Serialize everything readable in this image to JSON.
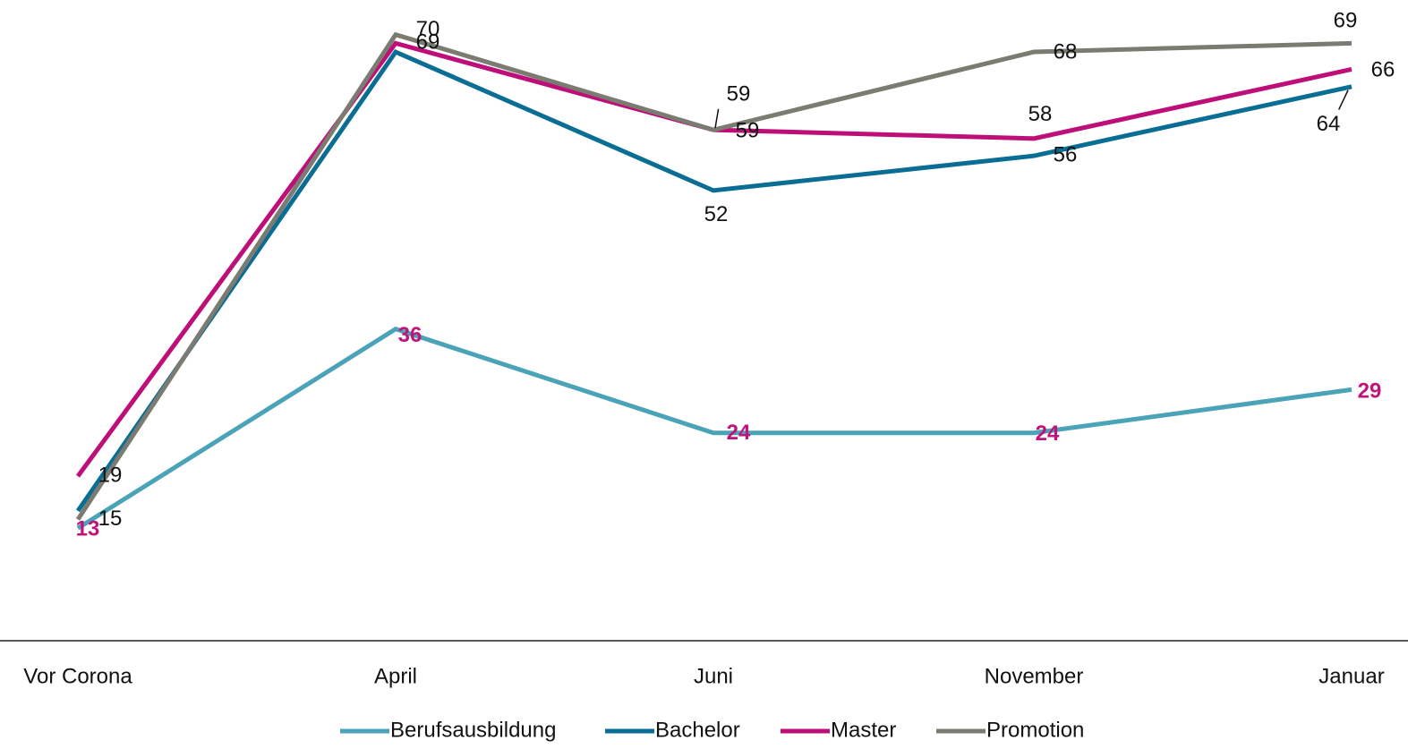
{
  "chart_data": {
    "type": "line",
    "categories": [
      "Vor Corona",
      "April",
      "Juni",
      "November",
      "Januar"
    ],
    "ylim": [
      0,
      74
    ],
    "series": [
      {
        "name": "Berufsausbildung",
        "color": "#4ba3b7",
        "values": [
          13,
          36,
          24,
          24,
          29
        ],
        "value_labels": [
          "13",
          "36",
          "24",
          "24",
          "29"
        ]
      },
      {
        "name": "Bachelor",
        "color": "#0a6d94",
        "values": [
          15,
          68,
          52,
          56,
          64
        ],
        "value_labels": [
          "15",
          null,
          "52",
          "56",
          "64"
        ]
      },
      {
        "name": "Master",
        "color": "#be0f78",
        "values": [
          19,
          69,
          59,
          58,
          66
        ],
        "value_labels": [
          "19",
          "69",
          "59",
          "58",
          "66"
        ]
      },
      {
        "name": "Promotion",
        "color": "#7b7b72",
        "values": [
          14,
          70,
          59,
          68,
          69
        ],
        "value_labels": [
          null,
          "70",
          "59",
          "68",
          "69"
        ]
      }
    ],
    "legend": "bottom"
  }
}
